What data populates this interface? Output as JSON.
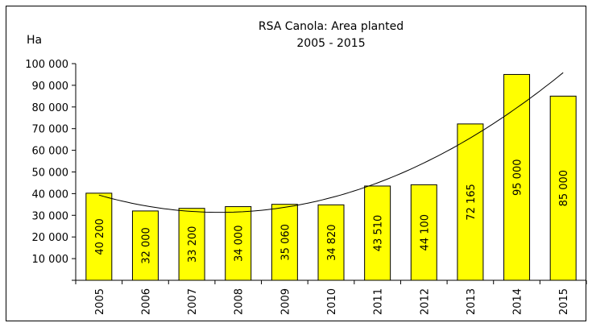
{
  "chart_data": {
    "type": "bar",
    "title": "RSA Canola: Area planted",
    "subtitle": "2005 - 2015",
    "ylabel": "Ha",
    "xlabel": "",
    "categories": [
      "2005",
      "2006",
      "2007",
      "2008",
      "2009",
      "2010",
      "2011",
      "2012",
      "2013",
      "2014",
      "2015"
    ],
    "values": [
      40200,
      32000,
      33200,
      34000,
      35060,
      34820,
      43510,
      44100,
      72165,
      95000,
      85000
    ],
    "value_labels": [
      "40 200",
      "32 000",
      "33 200",
      "34 000",
      "35 060",
      "34 820",
      "43 510",
      "44 100",
      "72 165",
      "95 000",
      "85 000"
    ],
    "ylim": [
      0,
      100000
    ],
    "ytick_values": [
      10000,
      20000,
      30000,
      40000,
      50000,
      60000,
      70000,
      80000,
      90000,
      100000
    ],
    "ytick_labels": [
      "10 000",
      "20 000",
      "30 000",
      "40 000",
      "50 000",
      "60 000",
      "70 000",
      "80 000",
      "90 000",
      "100 000"
    ],
    "trendline": "polynomial",
    "grid": false,
    "legend": "none",
    "bar_color": "#FFFF00",
    "bar_edge_color": "#000000"
  }
}
